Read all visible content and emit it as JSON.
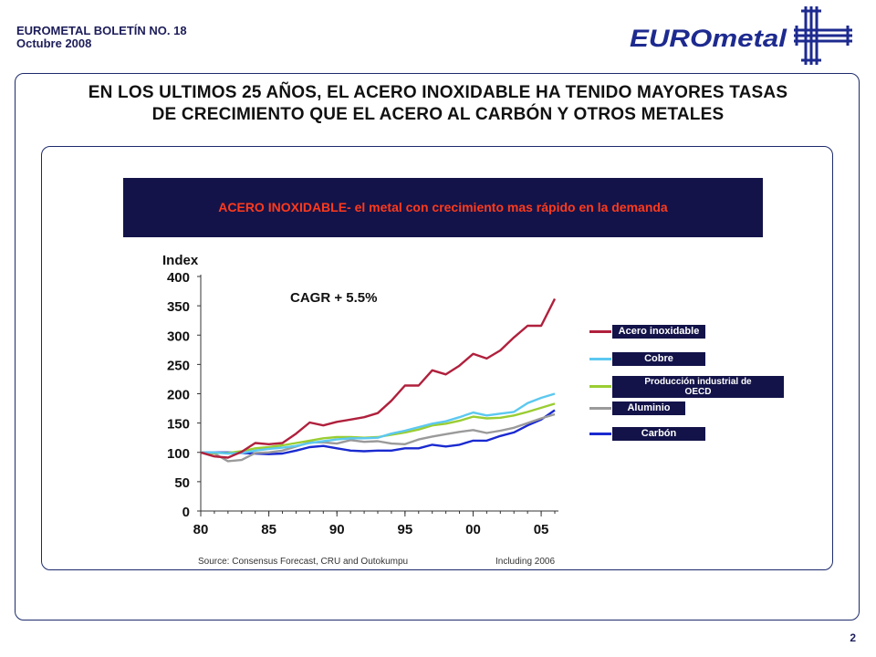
{
  "header": {
    "line1": "EUROMETAL BOLETÍN NO. 18",
    "line2": "Octubre 2008",
    "logo_text": "EUROmetal"
  },
  "heading": {
    "line1": "EN LOS ULTIMOS 25 AÑOS, EL ACERO INOXIDABLE HA TENIDO MAYORES  TASAS",
    "line2": "DE CRECIMIENTO QUE EL ACERO AL  CARBÓN Y OTROS METALES"
  },
  "banner": {
    "text": "ACERO INOXIDABLE- el metal con crecimiento mas rápido en la demanda"
  },
  "page_number": "2",
  "colors": {
    "navy": "#13134a",
    "banner_text": "#ff3a1c",
    "acero": "#b0203c",
    "cobre": "#5cc8f0",
    "oecd": "#9acd32",
    "aluminio": "#9a9a9a",
    "carbon": "#1a2ad0"
  },
  "chart_data": {
    "type": "line",
    "ylabel": "Index",
    "annotation": "CAGR + 5.5%",
    "source": "Source: Consensus Forecast, CRU and Outokumpu",
    "note": "Including 2006",
    "ylim": [
      0,
      400
    ],
    "yticks": [
      0,
      50,
      100,
      150,
      200,
      250,
      300,
      350,
      400
    ],
    "xlim": [
      1980,
      2006
    ],
    "xticks": [
      {
        "value": 1980,
        "label": "80"
      },
      {
        "value": 1985,
        "label": "85"
      },
      {
        "value": 1990,
        "label": "90"
      },
      {
        "value": 1995,
        "label": "95"
      },
      {
        "value": 2000,
        "label": "00"
      },
      {
        "value": 2005,
        "label": "05"
      }
    ],
    "grid": false,
    "legend_position": "right",
    "x": [
      1980,
      1981,
      1982,
      1983,
      1984,
      1985,
      1986,
      1987,
      1988,
      1989,
      1990,
      1991,
      1992,
      1993,
      1994,
      1995,
      1996,
      1997,
      1998,
      1999,
      2000,
      2001,
      2002,
      2003,
      2004,
      2005,
      2006
    ],
    "series": [
      {
        "name": "Acero inoxidable",
        "color": "#b0203c",
        "values": [
          100,
          93,
          91,
          101,
          116,
          114,
          116,
          132,
          151,
          146,
          152,
          156,
          160,
          167,
          188,
          214,
          214,
          240,
          233,
          248,
          268,
          260,
          274,
          296,
          316,
          316,
          362
        ]
      },
      {
        "name": "Cobre",
        "color": "#5cc8f0",
        "values": [
          100,
          100,
          98,
          99,
          103,
          106,
          108,
          111,
          116,
          119,
          122,
          124,
          124,
          125,
          132,
          137,
          143,
          149,
          153,
          160,
          168,
          163,
          166,
          169,
          184,
          193,
          200
        ]
      },
      {
        "name": "Producción industrial de OECD",
        "color": "#9acd32",
        "values": [
          100,
          99,
          99,
          102,
          107,
          109,
          112,
          116,
          120,
          124,
          126,
          126,
          125,
          126,
          130,
          134,
          139,
          146,
          149,
          154,
          161,
          158,
          159,
          163,
          169,
          176,
          183
        ]
      },
      {
        "name": "Aluminio",
        "color": "#9a9a9a",
        "values": [
          100,
          98,
          85,
          87,
          99,
          100,
          103,
          110,
          117,
          117,
          115,
          121,
          118,
          119,
          115,
          114,
          122,
          127,
          131,
          135,
          138,
          133,
          137,
          142,
          150,
          158,
          165
        ]
      },
      {
        "name": "Carbón",
        "color": "#1a2ad0",
        "values": [
          100,
          100,
          100,
          99,
          98,
          97,
          98,
          103,
          109,
          111,
          107,
          103,
          102,
          103,
          103,
          107,
          107,
          113,
          110,
          113,
          120,
          120,
          128,
          134,
          146,
          156,
          172
        ]
      }
    ]
  }
}
